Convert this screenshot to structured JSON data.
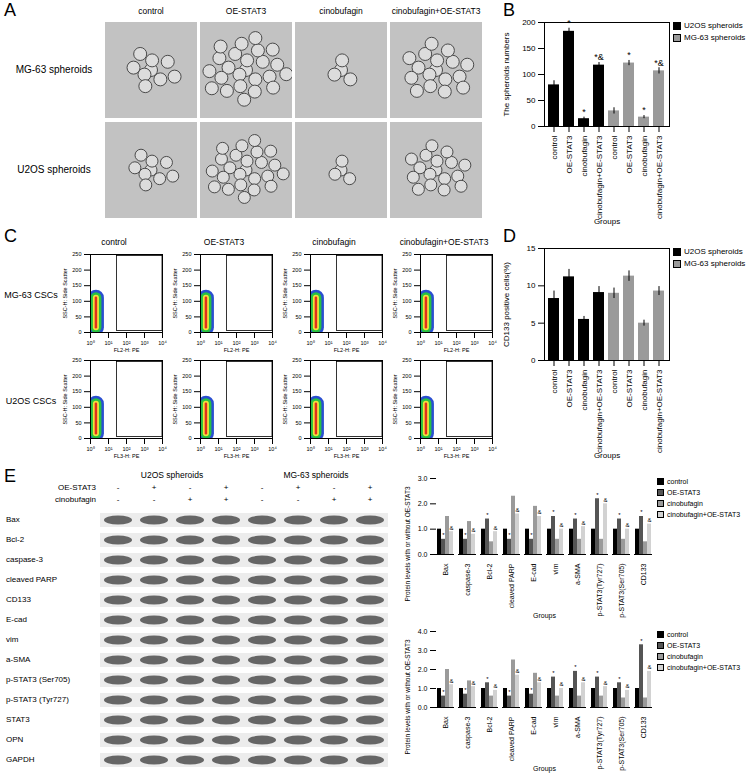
{
  "panel_labels": [
    "A",
    "B",
    "C",
    "D",
    "E"
  ],
  "groups": [
    "control",
    "OE-STAT3",
    "cinobufagin",
    "cinobufagin+OE-STAT3"
  ],
  "panel_A": {
    "rows": [
      "MG-63 spheroids",
      "U2OS spheroids"
    ]
  },
  "panel_C": {
    "rows": [
      {
        "label": "MG-63 CSCs",
        "xlabel": "FL2-H: PE"
      },
      {
        "label": "U2OS CSCs",
        "xlabel": "FL3-H: PE"
      }
    ],
    "ylabel": "SSC-H: Side Scatter",
    "log": "x",
    "xlim": [
      1,
      10000
    ],
    "xticks": [
      {
        "value": 1,
        "label": "10⁰"
      },
      {
        "value": 10,
        "label": "10¹"
      },
      {
        "value": 100,
        "label": "10²"
      },
      {
        "value": 1000,
        "label": "10³"
      },
      {
        "value": 10000,
        "label": "10⁴"
      }
    ],
    "ylim": [
      0,
      250
    ],
    "yticks": [
      0,
      50,
      100,
      150,
      200,
      250
    ],
    "gate": {
      "x": [
        30,
        10000
      ],
      "y": [
        5,
        245
      ]
    },
    "population": {
      "x": 2,
      "y": [
        15,
        110
      ]
    }
  },
  "chart_data": [
    {
      "type": "bar",
      "xlabel": "Groups",
      "ylabel": "The spheroids numbers",
      "categories": [
        "control",
        "OE-STAT3",
        "cinobufagin",
        "cinobufagin+OE-STAT3",
        "control",
        "OE-STAT3",
        "cinobufagin",
        "cinobufagin+OE-STAT3"
      ],
      "ylim": [
        0,
        200
      ],
      "yticks": [
        0,
        50,
        100,
        150,
        200
      ],
      "legend": "top-right",
      "series": [
        {
          "name": "U2OS spheroids",
          "color": "#000000",
          "values": [
            80,
            183,
            15,
            118,
            null,
            null,
            null,
            null
          ],
          "errors": [
            8,
            6,
            3,
            5,
            null,
            null,
            null,
            null
          ],
          "significance": [
            null,
            "*",
            "*",
            "*&",
            null,
            null,
            null,
            null
          ]
        },
        {
          "name": "MG-63 spheroids",
          "color": "#9a9a9a",
          "values": [
            null,
            null,
            null,
            null,
            30,
            122,
            18,
            107
          ],
          "errors": [
            null,
            null,
            null,
            null,
            6,
            5,
            3,
            6
          ],
          "significance": [
            null,
            null,
            null,
            null,
            null,
            "*",
            "*",
            "*&"
          ]
        }
      ]
    },
    {
      "type": "bar",
      "xlabel": "Groups",
      "ylabel": "CD133 positive cells(%)",
      "categories": [
        "control",
        "OE-STAT3",
        "cinobufagin",
        "cinobufagin+OE-STAT3",
        "control",
        "OE-STAT3",
        "cinobufagin",
        "cinobufagin+OE-STAT3"
      ],
      "ylim": [
        0,
        15
      ],
      "yticks": [
        0,
        5,
        10,
        15
      ],
      "legend": "top-right",
      "series": [
        {
          "name": "U2OS spheroids",
          "color": "#000000",
          "values": [
            8.3,
            11.2,
            5.5,
            9.1,
            null,
            null,
            null,
            null
          ],
          "errors": [
            1.0,
            1.0,
            0.4,
            0.8,
            null,
            null,
            null,
            null
          ]
        },
        {
          "name": "MG-63 spheroids",
          "color": "#9a9a9a",
          "values": [
            null,
            null,
            null,
            null,
            9.0,
            11.3,
            5.0,
            9.3
          ],
          "errors": [
            null,
            null,
            null,
            null,
            0.7,
            0.7,
            0.4,
            0.6
          ]
        }
      ]
    },
    {
      "type": "bar",
      "xlabel": "Groups",
      "ylabel": "Protein levels with or without OE-STAT3",
      "categories": [
        "Bax",
        "caspase-3",
        "Bcl-2",
        "cleaved PARP",
        "E-cad",
        "vim",
        "a-SMA",
        "p-STAT3(Tyr727)",
        "p-STAT3(Ser705)",
        "CD133"
      ],
      "ylim": [
        0,
        3
      ],
      "yticks": [
        0,
        1,
        2,
        3
      ],
      "legend": "top-right",
      "series": [
        {
          "name": "control",
          "color": "#000000",
          "values": [
            1,
            1,
            1,
            1,
            1,
            1,
            1,
            1,
            1,
            1
          ]
        },
        {
          "name": "OE-STAT3",
          "color": "#555555",
          "values": [
            0.6,
            0.6,
            1.4,
            0.6,
            0.6,
            1.5,
            1.4,
            2.2,
            1.4,
            1.5
          ],
          "significance": [
            "*",
            "*",
            "*",
            "*",
            "*",
            "*",
            "*",
            "*",
            "*",
            "*"
          ]
        },
        {
          "name": "cinobufagin",
          "color": "#9a9a9a",
          "values": [
            1.5,
            1.3,
            0.5,
            2.3,
            1.9,
            0.6,
            0.6,
            0.6,
            0.6,
            0.5
          ]
        },
        {
          "name": "cinobufagin+OE-STAT3",
          "color": "#d2d2d2",
          "values": [
            0.9,
            0.8,
            0.9,
            1.6,
            1.5,
            1.0,
            1.1,
            2.0,
            1.0,
            1.2
          ],
          "significance": [
            "&",
            "&",
            "&",
            "&",
            "&",
            "&",
            "&",
            "&",
            "&",
            "&"
          ]
        }
      ]
    },
    {
      "type": "bar",
      "xlabel": "Groups",
      "ylabel": "Protein levels with or without OE-STAT3",
      "categories": [
        "Bax",
        "caspase-3",
        "Bcl-2",
        "cleaved PARP",
        "E-cad",
        "vim",
        "a-SMA",
        "p-STAT3(Tyr727)",
        "p-STAT3(Ser705)",
        "CD133"
      ],
      "ylim": [
        0,
        4
      ],
      "yticks": [
        0,
        1,
        2,
        3,
        4
      ],
      "legend": "top-right",
      "series": [
        {
          "name": "control",
          "color": "#000000",
          "values": [
            1,
            1,
            1,
            1,
            1,
            1,
            1,
            1,
            1,
            1
          ]
        },
        {
          "name": "OE-STAT3",
          "color": "#555555",
          "values": [
            0.6,
            0.7,
            1.3,
            0.6,
            0.7,
            1.6,
            1.9,
            1.6,
            1.3,
            3.3
          ],
          "significance": [
            "*",
            "*",
            "*",
            "*",
            "*",
            "*",
            "*",
            "*",
            "*",
            "*"
          ]
        },
        {
          "name": "cinobufagin",
          "color": "#9a9a9a",
          "values": [
            2.0,
            1.4,
            0.6,
            2.5,
            1.8,
            0.6,
            0.6,
            0.6,
            0.5,
            0.5
          ]
        },
        {
          "name": "cinobufagin+OE-STAT3",
          "color": "#d2d2d2",
          "values": [
            1.2,
            1.1,
            0.9,
            1.7,
            1.3,
            1.0,
            1.3,
            1.1,
            0.9,
            1.9
          ],
          "significance": [
            "&",
            "&",
            "&",
            "&",
            "&",
            "&",
            "&",
            "&",
            "&",
            "&"
          ]
        }
      ]
    }
  ],
  "panel_E": {
    "cell_lines": [
      "U2OS spheroids",
      "MG-63 spheroids"
    ],
    "treatments": [
      {
        "name": "OE-STAT3",
        "signs": [
          "-",
          "+",
          "-",
          "+",
          "-",
          "+",
          "-",
          "+"
        ]
      },
      {
        "name": "cinobufagin",
        "signs": [
          "-",
          "-",
          "+",
          "+",
          "-",
          "-",
          "+",
          "+"
        ]
      }
    ],
    "proteins": [
      "Bax",
      "Bcl-2",
      "caspase-3",
      "cleaved PARP",
      "CD133",
      "E-cad",
      "vim",
      "a-SMA",
      "p-STAT3 (Ser705)",
      "p-STAT3 (Tyr727)",
      "STAT3",
      "OPN",
      "GAPDH"
    ]
  }
}
